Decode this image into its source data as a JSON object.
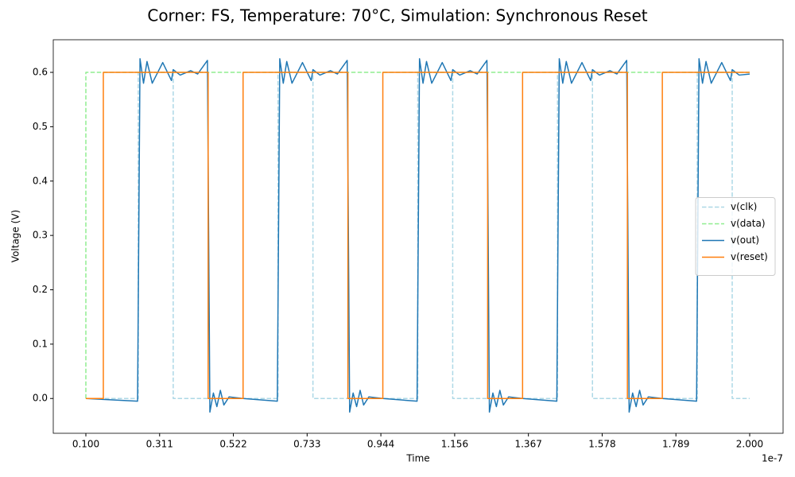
{
  "chart_data": {
    "type": "line",
    "title": "Corner: FS, Temperature: 70°C, Simulation: Synchronous Reset",
    "x_label": "Time",
    "y_label": "Voltage (V)",
    "x_offset_label": "1e-7",
    "xlim": [
      0.0067,
      2.0956
    ],
    "ylim": [
      -0.064,
      0.66
    ],
    "xticks": [
      {
        "value": 0.1,
        "label": "0.100"
      },
      {
        "value": 0.3111,
        "label": "0.311"
      },
      {
        "value": 0.5222,
        "label": "0.522"
      },
      {
        "value": 0.7333,
        "label": "0.733"
      },
      {
        "value": 0.9444,
        "label": "0.944"
      },
      {
        "value": 1.1556,
        "label": "1.156"
      },
      {
        "value": 1.3667,
        "label": "1.367"
      },
      {
        "value": 1.5778,
        "label": "1.578"
      },
      {
        "value": 1.7889,
        "label": "1.789"
      },
      {
        "value": 2.0,
        "label": "2.000"
      }
    ],
    "yticks": [
      {
        "value": 0,
        "label": "0.0"
      },
      {
        "value": 0.1,
        "label": "0.1"
      },
      {
        "value": 0.2,
        "label": "0.2"
      },
      {
        "value": 0.3,
        "label": "0.3"
      },
      {
        "value": 0.4,
        "label": "0.4"
      },
      {
        "value": 0.5,
        "label": "0.5"
      },
      {
        "value": 0.6,
        "label": "0.6"
      }
    ],
    "grid": false,
    "legend": "center right",
    "series": [
      {
        "name": "v(clk)",
        "color": "#add8e6",
        "linestyle": "dashed",
        "x": [
          0.1,
          0.25,
          0.25,
          0.35,
          0.35,
          0.65,
          0.65,
          0.75,
          0.75,
          1.05,
          1.05,
          1.15,
          1.15,
          1.45,
          1.45,
          1.55,
          1.55,
          1.85,
          1.85,
          1.95,
          1.95,
          2.0
        ],
        "values": [
          0,
          0,
          0.6,
          0.6,
          0,
          0,
          0.6,
          0.6,
          0,
          0,
          0.6,
          0.6,
          0,
          0,
          0.6,
          0.6,
          0,
          0,
          0.6,
          0.6,
          0,
          0
        ]
      },
      {
        "name": "v(data)",
        "color": "#90ee90",
        "linestyle": "dashed",
        "x": [
          0.1,
          0.1,
          2.0
        ],
        "values": [
          0,
          0.6,
          0.6
        ]
      },
      {
        "name": "v(out)",
        "color": "#1f77b4",
        "linestyle": "solid",
        "x": [
          0.1,
          0.248,
          0.255,
          0.265,
          0.275,
          0.29,
          0.32,
          0.345,
          0.35,
          0.37,
          0.4,
          0.42,
          0.448,
          0.455,
          0.465,
          0.475,
          0.485,
          0.495,
          0.51,
          0.55,
          0.648,
          0.655,
          0.665,
          0.675,
          0.69,
          0.72,
          0.745,
          0.75,
          0.77,
          0.8,
          0.82,
          0.848,
          0.855,
          0.865,
          0.875,
          0.885,
          0.895,
          0.91,
          0.95,
          1.048,
          1.055,
          1.065,
          1.075,
          1.09,
          1.12,
          1.145,
          1.15,
          1.17,
          1.2,
          1.22,
          1.248,
          1.255,
          1.265,
          1.275,
          1.285,
          1.295,
          1.31,
          1.35,
          1.448,
          1.455,
          1.465,
          1.475,
          1.49,
          1.52,
          1.545,
          1.55,
          1.57,
          1.6,
          1.62,
          1.648,
          1.655,
          1.665,
          1.675,
          1.685,
          1.695,
          1.71,
          1.75,
          1.848,
          1.855,
          1.865,
          1.875,
          1.89,
          1.92,
          1.945,
          1.95,
          1.97,
          2.0
        ],
        "values": [
          0,
          -0.005,
          0.625,
          0.58,
          0.62,
          0.58,
          0.618,
          0.585,
          0.605,
          0.595,
          0.603,
          0.597,
          0.622,
          -0.025,
          0.01,
          -0.015,
          0.015,
          -0.012,
          0.003,
          0,
          -0.005,
          0.625,
          0.58,
          0.62,
          0.58,
          0.618,
          0.585,
          0.605,
          0.595,
          0.603,
          0.597,
          0.622,
          -0.025,
          0.01,
          -0.015,
          0.015,
          -0.012,
          0.003,
          0,
          -0.005,
          0.625,
          0.58,
          0.62,
          0.58,
          0.618,
          0.585,
          0.605,
          0.595,
          0.603,
          0.597,
          0.622,
          -0.025,
          0.01,
          -0.015,
          0.015,
          -0.012,
          0.003,
          0,
          -0.005,
          0.625,
          0.58,
          0.62,
          0.58,
          0.618,
          0.585,
          0.605,
          0.595,
          0.603,
          0.597,
          0.622,
          -0.025,
          0.01,
          -0.015,
          0.015,
          -0.012,
          0.003,
          0,
          -0.005,
          0.625,
          0.58,
          0.62,
          0.58,
          0.618,
          0.585,
          0.605,
          0.595,
          0.597
        ]
      },
      {
        "name": "v(reset)",
        "color": "#ff7f0e",
        "linestyle": "solid",
        "x": [
          0.1,
          0.15,
          0.15,
          0.45,
          0.45,
          0.55,
          0.55,
          0.85,
          0.85,
          0.95,
          0.95,
          1.25,
          1.25,
          1.35,
          1.35,
          1.65,
          1.65,
          1.75,
          1.75,
          2.0
        ],
        "values": [
          0,
          0,
          0.6,
          0.6,
          0,
          0,
          0.6,
          0.6,
          0,
          0,
          0.6,
          0.6,
          0,
          0,
          0.6,
          0.6,
          0,
          0,
          0.6,
          0.6
        ]
      }
    ]
  }
}
